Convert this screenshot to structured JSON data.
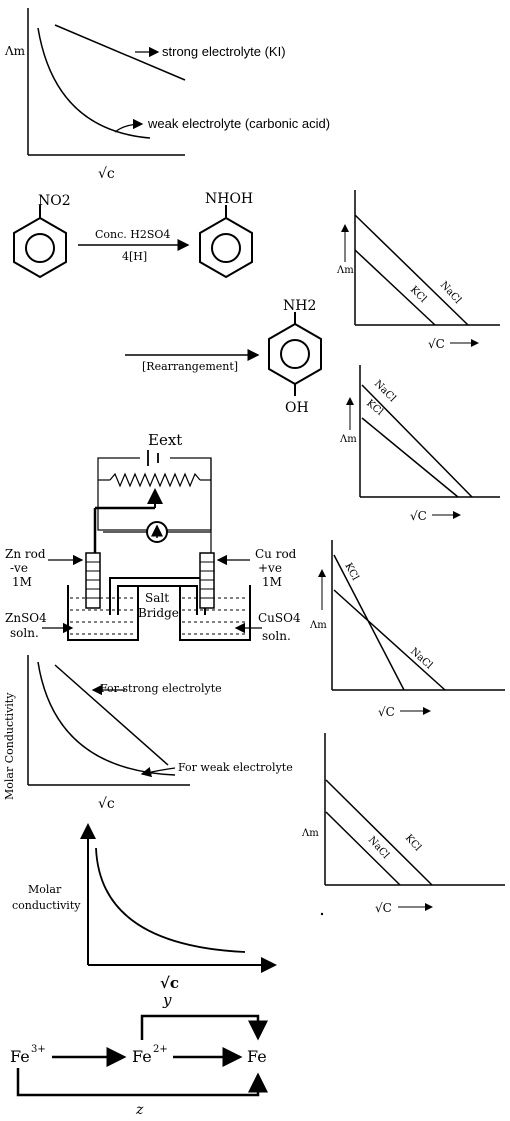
{
  "fig1": {
    "ylabel": "Λm",
    "strong_label": "strong electrolyte (KI)",
    "weak_label": "weak electrolyte (carbonic acid)",
    "xlabel": "√c"
  },
  "reaction": {
    "reactant_group": "NO2",
    "reagent_top": "Conc. H2SO4",
    "reagent_bottom": "4[H]",
    "intermediate_group": "NHOH",
    "rearrangement_label": "[Rearrangement]",
    "product_top_group": "NH2",
    "product_bottom_group": "OH"
  },
  "graph_a": {
    "ylabel": "Λm",
    "xlabel": "√C",
    "upper_line": "NaCl",
    "lower_line": "KCl"
  },
  "graph_b": {
    "ylabel": "Λm",
    "xlabel": "√C",
    "line1": "NaCl",
    "line2": "KCl"
  },
  "graph_c": {
    "ylabel": "Λm",
    "xlabel": "√C",
    "steep_line": "KCl",
    "shallow_line": "NaCl"
  },
  "graph_d": {
    "ylabel": "Λm",
    "xlabel": "√C",
    "upper_line": "KCl",
    "lower_line": "NaCl"
  },
  "cell": {
    "eext": "Eext",
    "zn_rod": "Zn rod",
    "zn_sign": "-ve",
    "zn_conc": "1M",
    "cu_rod": "Cu rod",
    "cu_sign": "+ve",
    "cu_conc": "1M",
    "salt_bridge_1": "Salt",
    "salt_bridge_2": "Bridge",
    "znso4": "ZnSO4",
    "cuso4": "CuSO4",
    "soln": "soln."
  },
  "fig_mc": {
    "ylabel": "Molar Conductivity",
    "strong_label": "For strong electrolyte",
    "weak_label": "For weak electrolyte",
    "xlabel": "√c"
  },
  "fig_mc2": {
    "ylabel_1": "Molar",
    "ylabel_2": "conductivity",
    "xlabel": "√c",
    "sub_label": "y"
  },
  "iron": {
    "fe3": "Fe",
    "fe3_charge": "3+",
    "fe2": "Fe",
    "fe2_charge": "2+",
    "fe": "Fe",
    "path_label": "z"
  }
}
